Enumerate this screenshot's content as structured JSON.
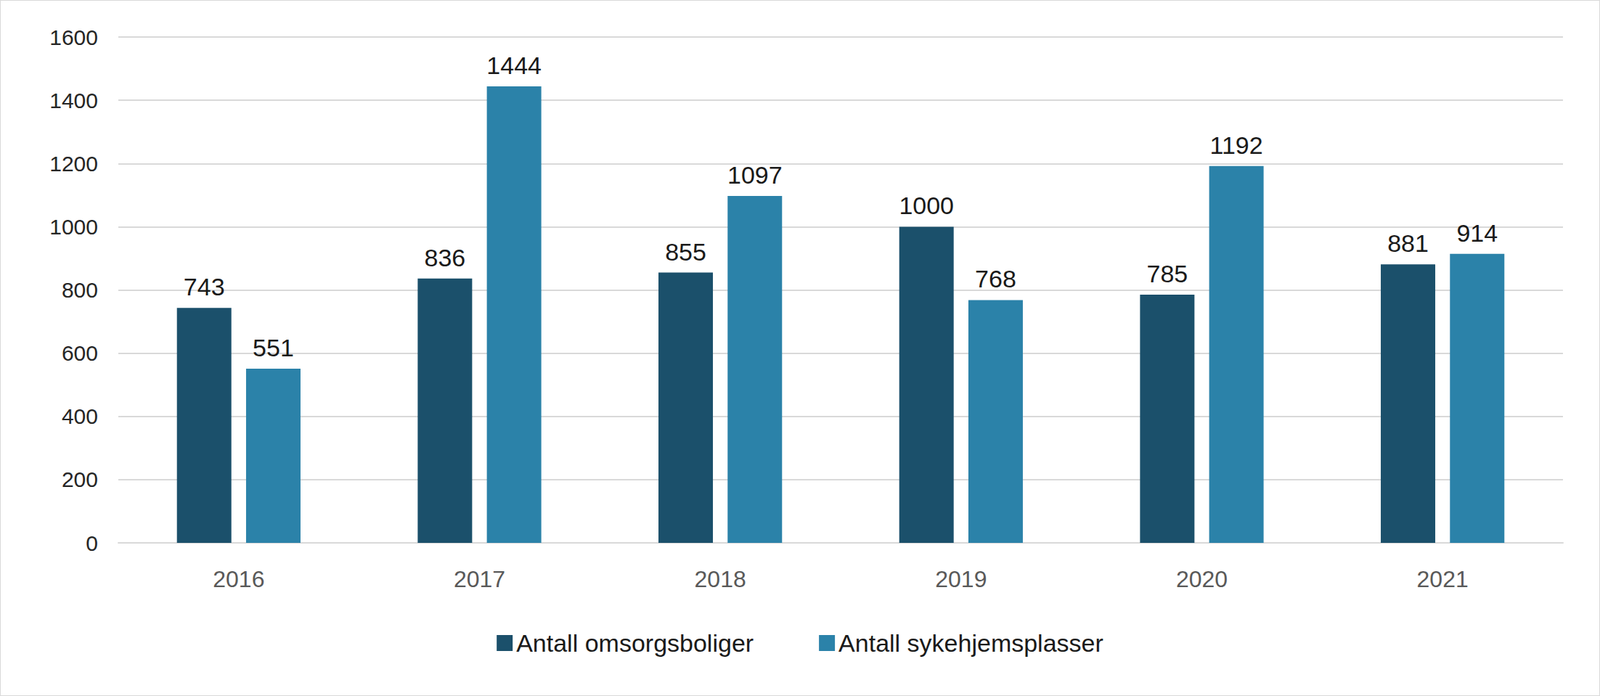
{
  "chart_data": {
    "type": "bar",
    "categories": [
      "2016",
      "2017",
      "2018",
      "2019",
      "2020",
      "2021"
    ],
    "series": [
      {
        "name": "Antall omsorgsboliger",
        "color": "#1b506b",
        "values": [
          743,
          836,
          855,
          1000,
          785,
          881
        ]
      },
      {
        "name": "Antall sykehjemsplasser",
        "color": "#2b82a9",
        "values": [
          551,
          1444,
          1097,
          768,
          1192,
          914
        ]
      }
    ],
    "ylim": [
      0,
      1600
    ],
    "yticks": [
      0,
      200,
      400,
      600,
      800,
      1000,
      1200,
      1400,
      1600
    ],
    "grid": true,
    "legend": "bottom",
    "data_labels": true
  }
}
